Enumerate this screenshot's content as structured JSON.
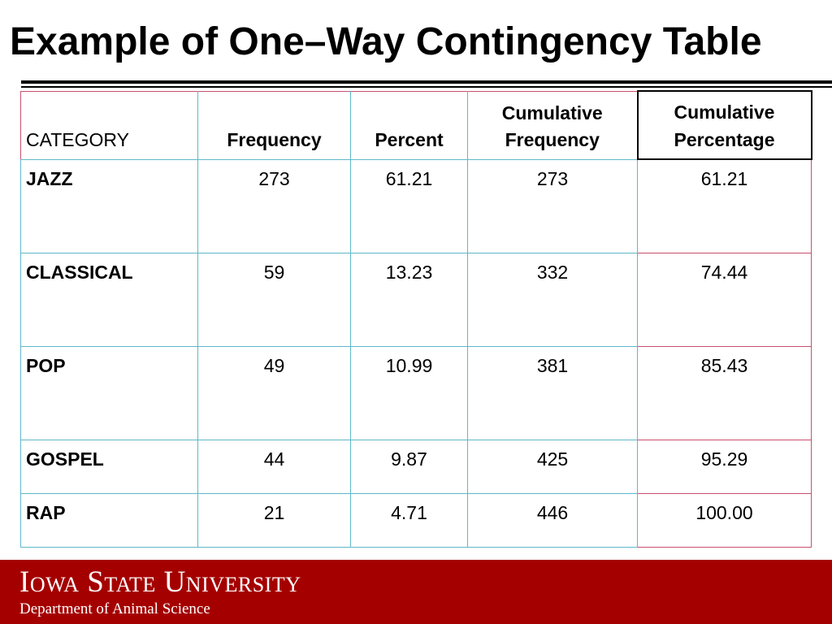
{
  "slide": {
    "title": "Example of One–Way Contingency Table"
  },
  "table": {
    "headers": [
      "CATEGORY",
      "Frequency",
      "Percent",
      "Cumulative\nFrequency",
      "Cumulative\nPercentage"
    ],
    "header_lines": {
      "cum_freq": [
        "Cumulative",
        "Frequency"
      ],
      "cum_pct": [
        "Cumulative",
        "Percentage"
      ]
    },
    "rows": [
      {
        "category": "JAZZ",
        "frequency": "273",
        "percent": "61.21",
        "cum_frequency": "273",
        "cum_percentage": "61.21"
      },
      {
        "category": "CLASSICAL",
        "frequency": "59",
        "percent": "13.23",
        "cum_frequency": "332",
        "cum_percentage": "74.44"
      },
      {
        "category": "POP",
        "frequency": "49",
        "percent": "10.99",
        "cum_frequency": "381",
        "cum_percentage": "85.43"
      },
      {
        "category": "GOSPEL",
        "frequency": "44",
        "percent": "9.87",
        "cum_frequency": "425",
        "cum_percentage": "95.29"
      },
      {
        "category": "RAP",
        "frequency": "21",
        "percent": "4.71",
        "cum_frequency": "446",
        "cum_percentage": "100.00"
      }
    ]
  },
  "footer": {
    "university": "Iowa State University",
    "department": "Department of Animal Science"
  },
  "colors": {
    "footer_bg": "#a50000",
    "grid_teal": "#5fb8c8",
    "grid_pink": "#c8506e"
  }
}
